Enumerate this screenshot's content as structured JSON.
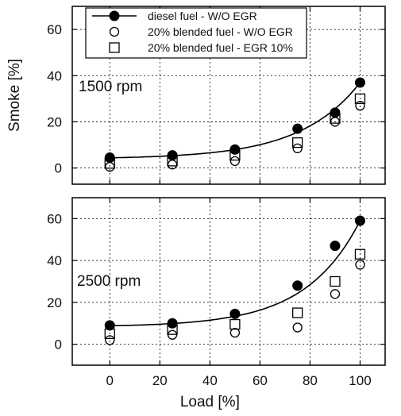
{
  "chart_data": [
    {
      "type": "scatter",
      "panel_label": "1500 rpm",
      "ylabel": "Smoke [%]",
      "xlim": [
        -15,
        110
      ],
      "ylim": [
        -7,
        70
      ],
      "yticks": [
        0,
        20,
        40,
        60
      ],
      "grid": true,
      "legend_position": "top",
      "series": [
        {
          "name": "diesel fuel - W/O EGR",
          "marker": "filled-circle",
          "trend_line": true,
          "x": [
            0,
            25,
            50,
            75,
            90,
            100
          ],
          "y": [
            4.5,
            5.5,
            8,
            17,
            24,
            37
          ]
        },
        {
          "name": "20% blended fuel - W/O EGR",
          "marker": "open-circle",
          "x": [
            0,
            25,
            50,
            75,
            90,
            100
          ],
          "y": [
            0.5,
            1.5,
            3,
            8.5,
            20,
            27
          ]
        },
        {
          "name": "20% blended fuel - EGR 10%",
          "marker": "open-square",
          "x": [
            0,
            25,
            50,
            75,
            90,
            100
          ],
          "y": [
            2,
            3,
            5.5,
            11,
            21.5,
            30
          ]
        }
      ]
    },
    {
      "type": "scatter",
      "panel_label": "2500 rpm",
      "xlabel": "Load [%]",
      "xlim": [
        -15,
        110
      ],
      "ylim": [
        -10,
        70
      ],
      "xticks": [
        0,
        20,
        40,
        60,
        80,
        100
      ],
      "yticks": [
        0,
        20,
        40,
        60
      ],
      "grid": true,
      "series": [
        {
          "name": "diesel fuel - W/O EGR",
          "marker": "filled-circle",
          "trend_line": true,
          "x": [
            0,
            25,
            50,
            75,
            90,
            100
          ],
          "y": [
            9,
            10,
            14.5,
            28,
            47,
            59
          ]
        },
        {
          "name": "20% blended fuel - W/O EGR",
          "marker": "open-circle",
          "x": [
            0,
            25,
            50,
            75,
            90,
            100
          ],
          "y": [
            2,
            4.5,
            5.5,
            8,
            24,
            38
          ]
        },
        {
          "name": "20% blended fuel - EGR 10%",
          "marker": "open-square",
          "x": [
            0,
            25,
            50,
            75,
            90,
            100
          ],
          "y": [
            5,
            7,
            9.5,
            15,
            30,
            43
          ]
        }
      ]
    }
  ]
}
